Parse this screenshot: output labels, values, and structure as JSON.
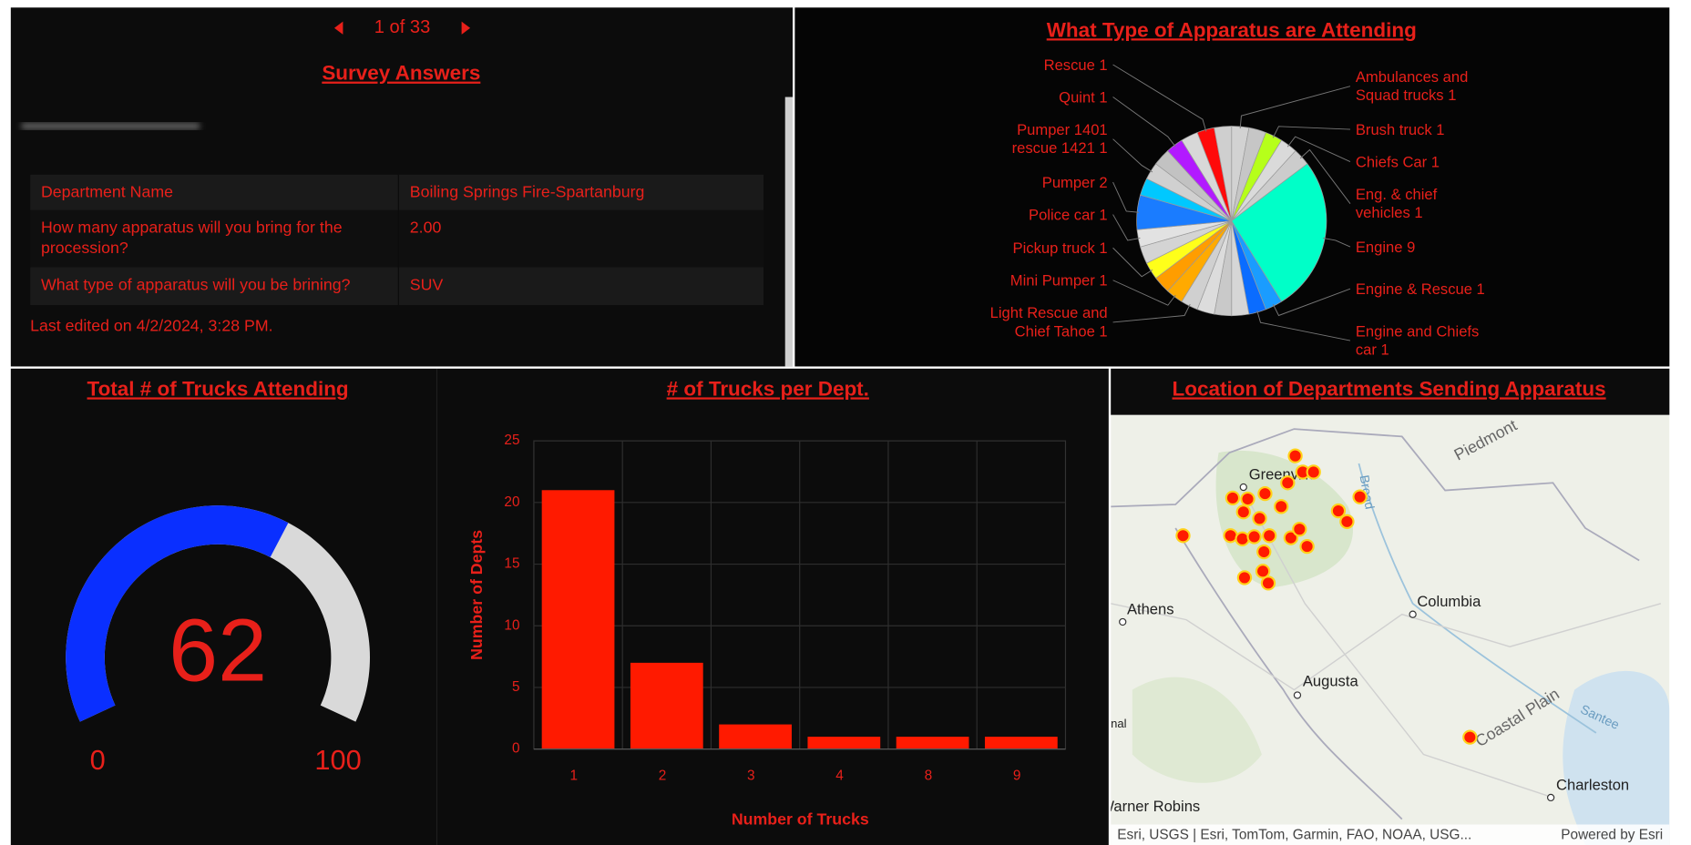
{
  "pager": {
    "label": "1 of 33"
  },
  "survey": {
    "title": "Survey Answers",
    "rows": [
      [
        "Department Name",
        "Boiling Springs Fire-Spartanburg"
      ],
      [
        "How many apparatus will you bring for the procession?",
        "2.00"
      ],
      [
        "What type of apparatus will you be brining?",
        "SUV"
      ]
    ],
    "footer": "Last edited on 4/2/2024, 3:28 PM."
  },
  "chart_data": [
    {
      "type": "pie",
      "title": "What Type of Apparatus are Attending",
      "categories": [
        "Ambulances and Squad trucks",
        null,
        "Brush truck",
        "Chiefs Car",
        "Eng. & chief vehicles",
        "Engine",
        "Engine & Rescue",
        "Engine and Chiefs car",
        null,
        null,
        null,
        "Light Rescue and Chief Tahoe",
        "Mini Pumper",
        null,
        "Pickup truck",
        null,
        "Police car",
        "Pumper",
        null,
        "Pumper 1401 rescue 1421",
        null,
        "Quint",
        null,
        "Rescue",
        null
      ],
      "values": [
        1,
        1,
        1,
        1,
        1,
        9,
        1,
        1,
        1,
        1,
        1,
        1,
        1,
        1,
        1,
        1,
        1,
        2,
        1,
        1,
        1,
        1,
        1,
        1,
        1
      ],
      "colors": [
        "#d2d2d2",
        "#c6c6c6",
        "#b6ff1a",
        "#dadada",
        "#cccccc",
        "#00ffc8",
        "#1a9cff",
        "#0a6cff",
        "#d6d6d6",
        "#c9c9c9",
        "#dcdcdc",
        "#d0d0d0",
        "#ffaa00",
        "#ff9d00",
        "#ffff1a",
        "#d4d4d4",
        "#e2e2e2",
        "#1a7cff",
        "#00c8ff",
        "#d0d0d0",
        "#c2c2c2",
        "#b21aff",
        "#d8d8d8",
        "#ff0a0a",
        "#cfcfcf"
      ]
    },
    {
      "type": "gauge",
      "title": "Total # of Trucks Attending",
      "value": 62,
      "ylim": [
        0,
        100
      ],
      "yticks": [
        0,
        100
      ],
      "color": "#0a2fff",
      "track_color": "#d9d9d9"
    },
    {
      "type": "bar",
      "title": "# of Trucks per Dept.",
      "x_label": "Number of Trucks",
      "y_label": "Number of Depts",
      "categories": [
        "1",
        "2",
        "3",
        "4",
        "8",
        "9"
      ],
      "values": [
        21,
        7,
        2,
        1,
        1,
        1
      ],
      "color": "#ff1a00",
      "ylim": [
        0,
        25
      ],
      "yticks": [
        0,
        5,
        10,
        15,
        20,
        25
      ],
      "grid": true
    }
  ],
  "map": {
    "title": "Location of Departments Sending Apparatus",
    "labels": [
      "Greenville",
      "Piedmont",
      "Broad",
      "Athens",
      "Columbia",
      "Augusta",
      "Coastal Plain",
      "Santee",
      "Charleston",
      "nal",
      "Warner Robins"
    ],
    "attribution": "Esri, USGS | Esri, TomTom, Garmin, FAO, NOAA, USG...",
    "powered_by": "Powered by Esri"
  }
}
